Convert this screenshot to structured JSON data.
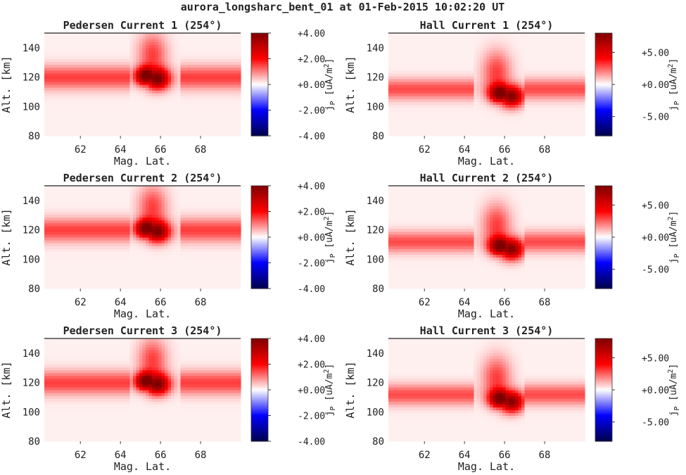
{
  "figure": {
    "title": "aurora_longsharc_bent_01 at 01-Feb-2015 10:02:20 UT"
  },
  "chart_data": [
    {
      "type": "heatmap",
      "title": "Pedersen Current 1 (254°)",
      "xlabel": "Mag. Lat.",
      "ylabel": "Alt. [km]",
      "xlim": [
        60.2,
        70.0
      ],
      "ylim": [
        80,
        150
      ],
      "xticks": [
        "62",
        "64",
        "66",
        "68"
      ],
      "yticks": [
        "80",
        "100",
        "120",
        "140"
      ],
      "colorbar": {
        "label": "jP [uA/m²]",
        "label_main": "j",
        "label_sub": "P",
        "label_rest": " [uA/m",
        "label_sup": "2",
        "label_end": "]",
        "range": [
          -4.0,
          4.0
        ],
        "ticks": [
          "+4.00",
          "+2.00",
          "+0.00",
          "-2.00",
          "-4.00"
        ],
        "colormap": "seismic"
      },
      "features": {
        "layer_altitude_km": 120,
        "layer_thickness_km": 8,
        "layer_peak": 1.4,
        "arc_center_lat": 65.6,
        "arc_gap_lat": [
          64.4,
          67.0
        ],
        "peak_value": 4.0,
        "peak_lat": 65.3,
        "peak_alt_km": 121
      }
    },
    {
      "type": "heatmap",
      "title": "Hall Current 1 (254°)",
      "xlabel": "Mag. Lat.",
      "ylabel": "Alt. [km]",
      "xlim": [
        60.2,
        70.0
      ],
      "ylim": [
        80,
        150
      ],
      "xticks": [
        "62",
        "64",
        "66",
        "68"
      ],
      "yticks": [
        "80",
        "100",
        "120",
        "140"
      ],
      "colorbar": {
        "label": "jP [uA/m²]",
        "label_main": "j",
        "label_sub": "P",
        "label_rest": " [uA/m",
        "label_sup": "2",
        "label_end": "]",
        "range": [
          -8.0,
          8.0
        ],
        "ticks": [
          "+5.00",
          "+0.00",
          "-5.00"
        ],
        "colormap": "seismic"
      },
      "features": {
        "layer_altitude_km": 112,
        "layer_thickness_km": 7,
        "layer_peak": 2.6,
        "arc_center_lat": 65.6,
        "arc_gap_lat": [
          64.4,
          67.0
        ],
        "peak_value": 8.0,
        "peak_lat": 65.8,
        "peak_alt_km": 109
      }
    },
    {
      "type": "heatmap",
      "title": "Pedersen Current 2 (254°)",
      "xlabel": "Mag. Lat.",
      "ylabel": "Alt. [km]",
      "xlim": [
        60.2,
        70.0
      ],
      "ylim": [
        80,
        150
      ],
      "xticks": [
        "62",
        "64",
        "66",
        "68"
      ],
      "yticks": [
        "80",
        "100",
        "120",
        "140"
      ],
      "colorbar": {
        "label": "jP [uA/m²]",
        "label_main": "j",
        "label_sub": "P",
        "label_rest": " [uA/m",
        "label_sup": "2",
        "label_end": "]",
        "range": [
          -4.0,
          4.0
        ],
        "ticks": [
          "+4.00",
          "+2.00",
          "+0.00",
          "-2.00",
          "-4.00"
        ],
        "colormap": "seismic"
      },
      "features": {
        "layer_altitude_km": 120,
        "layer_thickness_km": 8,
        "layer_peak": 1.4,
        "arc_center_lat": 65.6,
        "arc_gap_lat": [
          64.4,
          67.0
        ],
        "peak_value": 4.0,
        "peak_lat": 65.3,
        "peak_alt_km": 121
      }
    },
    {
      "type": "heatmap",
      "title": "Hall Current 2 (254°)",
      "xlabel": "Mag. Lat.",
      "ylabel": "Alt. [km]",
      "xlim": [
        60.2,
        70.0
      ],
      "ylim": [
        80,
        150
      ],
      "xticks": [
        "62",
        "64",
        "66",
        "68"
      ],
      "yticks": [
        "80",
        "100",
        "120",
        "140"
      ],
      "colorbar": {
        "label": "jP [uA/m²]",
        "label_main": "j",
        "label_sub": "P",
        "label_rest": " [uA/m",
        "label_sup": "2",
        "label_end": "]",
        "range": [
          -8.0,
          8.0
        ],
        "ticks": [
          "+5.00",
          "+0.00",
          "-5.00"
        ],
        "colormap": "seismic"
      },
      "features": {
        "layer_altitude_km": 112,
        "layer_thickness_km": 7,
        "layer_peak": 2.6,
        "arc_center_lat": 65.6,
        "arc_gap_lat": [
          64.4,
          67.0
        ],
        "peak_value": 8.0,
        "peak_lat": 65.8,
        "peak_alt_km": 109
      }
    },
    {
      "type": "heatmap",
      "title": "Pedersen Current 3 (254°)",
      "xlabel": "Mag. Lat.",
      "ylabel": "Alt. [km]",
      "xlim": [
        60.2,
        70.0
      ],
      "ylim": [
        80,
        150
      ],
      "xticks": [
        "62",
        "64",
        "66",
        "68"
      ],
      "yticks": [
        "80",
        "100",
        "120",
        "140"
      ],
      "colorbar": {
        "label": "jP [uA/m²]",
        "label_main": "j",
        "label_sub": "P",
        "label_rest": " [uA/m",
        "label_sup": "2",
        "label_end": "]",
        "range": [
          -4.0,
          4.0
        ],
        "ticks": [
          "+4.00",
          "+2.00",
          "+0.00",
          "-2.00",
          "-4.00"
        ],
        "colormap": "seismic"
      },
      "features": {
        "layer_altitude_km": 120,
        "layer_thickness_km": 8,
        "layer_peak": 1.4,
        "arc_center_lat": 65.6,
        "arc_gap_lat": [
          64.4,
          67.0
        ],
        "peak_value": 4.0,
        "peak_lat": 65.3,
        "peak_alt_km": 121
      }
    },
    {
      "type": "heatmap",
      "title": "Hall Current 3 (254°)",
      "xlabel": "Mag. Lat.",
      "ylabel": "Alt. [km]",
      "xlim": [
        60.2,
        70.0
      ],
      "ylim": [
        80,
        150
      ],
      "xticks": [
        "62",
        "64",
        "66",
        "68"
      ],
      "yticks": [
        "80",
        "100",
        "120",
        "140"
      ],
      "colorbar": {
        "label": "jP [uA/m²]",
        "label_main": "j",
        "label_sub": "P",
        "label_rest": " [uA/m",
        "label_sup": "2",
        "label_end": "]",
        "range": [
          -8.0,
          8.0
        ],
        "ticks": [
          "+5.00",
          "+0.00",
          "-5.00"
        ],
        "colormap": "seismic"
      },
      "features": {
        "layer_altitude_km": 112,
        "layer_thickness_km": 7,
        "layer_peak": 2.6,
        "arc_center_lat": 65.6,
        "arc_gap_lat": [
          64.4,
          67.0
        ],
        "peak_value": 8.0,
        "peak_lat": 65.8,
        "peak_alt_km": 109
      }
    }
  ]
}
